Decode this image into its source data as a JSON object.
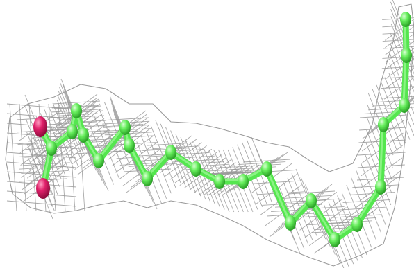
{
  "scene": {
    "subject": "fatty-acid-ligand-in-electron-density-map",
    "colors": {
      "carbon": "#55e64f",
      "carbon_light": "#b8ffb0",
      "carbon_dark": "#2fae2a",
      "oxygen": "#e0206a",
      "oxygen_dark": "#a80f4a",
      "mesh": "#9a9a9a",
      "background": "#ffffff"
    },
    "atoms": [
      {
        "element": "O",
        "label": "oxygen-1"
      },
      {
        "element": "O",
        "label": "oxygen-2"
      },
      {
        "element": "C"
      },
      {
        "element": "C"
      },
      {
        "element": "C"
      },
      {
        "element": "C"
      },
      {
        "element": "C"
      },
      {
        "element": "C"
      },
      {
        "element": "C"
      },
      {
        "element": "C"
      },
      {
        "element": "C"
      },
      {
        "element": "C"
      },
      {
        "element": "C"
      },
      {
        "element": "C"
      },
      {
        "element": "C"
      },
      {
        "element": "C"
      },
      {
        "element": "C"
      },
      {
        "element": "C"
      },
      {
        "element": "C"
      },
      {
        "element": "C"
      },
      {
        "element": "C"
      },
      {
        "element": "C"
      },
      {
        "element": "C"
      },
      {
        "element": "C"
      }
    ]
  }
}
